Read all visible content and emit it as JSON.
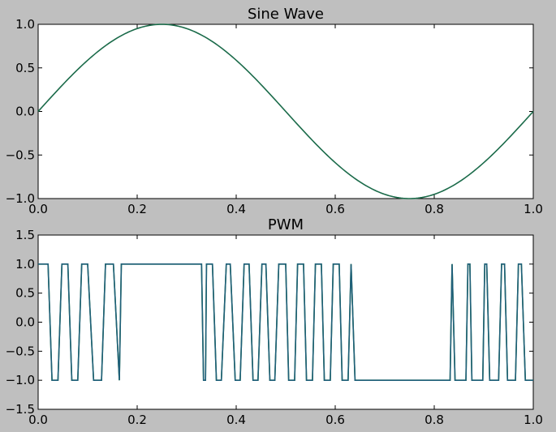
{
  "figure": {
    "background": "#bfbfbf"
  },
  "chart_data": [
    {
      "type": "line",
      "title": "Sine Wave",
      "xlabel": "",
      "ylabel": "",
      "xlim": [
        0.0,
        1.0
      ],
      "ylim": [
        -1.0,
        1.0
      ],
      "grid": false,
      "xticks": [
        0.0,
        0.2,
        0.4,
        0.6,
        0.8,
        1.0
      ],
      "xtick_labels": [
        "0.0",
        "0.2",
        "0.4",
        "0.6",
        "0.8",
        "1.0"
      ],
      "yticks": [
        1.0,
        0.5,
        0.0,
        -0.5,
        -1.0
      ],
      "ytick_labels": [
        "1.0",
        "0.5",
        "0.0",
        "−0.5",
        "−1.0"
      ],
      "series": [
        {
          "color": "#1b6b4a",
          "function": "sin(2*pi*x)",
          "x": [
            0.0,
            0.025,
            0.05,
            0.075,
            0.1,
            0.125,
            0.15,
            0.175,
            0.2,
            0.225,
            0.25,
            0.275,
            0.3,
            0.325,
            0.35,
            0.375,
            0.4,
            0.425,
            0.45,
            0.475,
            0.5,
            0.525,
            0.55,
            0.575,
            0.6,
            0.625,
            0.65,
            0.675,
            0.7,
            0.725,
            0.75,
            0.775,
            0.8,
            0.825,
            0.85,
            0.875,
            0.9,
            0.925,
            0.95,
            0.975,
            1.0
          ],
          "y": [
            0.0,
            0.156,
            0.309,
            0.454,
            0.588,
            0.707,
            0.809,
            0.891,
            0.951,
            0.988,
            1.0,
            0.988,
            0.951,
            0.891,
            0.809,
            0.707,
            0.588,
            0.454,
            0.309,
            0.156,
            0.0,
            -0.156,
            -0.309,
            -0.454,
            -0.588,
            -0.707,
            -0.809,
            -0.891,
            -0.951,
            -0.988,
            -1.0,
            -0.988,
            -0.951,
            -0.891,
            -0.809,
            -0.707,
            -0.588,
            -0.454,
            -0.309,
            -0.156,
            0.0
          ]
        }
      ]
    },
    {
      "type": "line",
      "title": "PWM",
      "xlabel": "",
      "ylabel": "",
      "xlim": [
        0.0,
        1.0
      ],
      "ylim": [
        -1.5,
        1.5
      ],
      "grid": false,
      "xticks": [
        0.0,
        0.2,
        0.4,
        0.6,
        0.8,
        1.0
      ],
      "xtick_labels": [
        "0.0",
        "0.2",
        "0.4",
        "0.6",
        "0.8",
        "1.0"
      ],
      "yticks": [
        1.5,
        1.0,
        0.5,
        0.0,
        -0.5,
        -1.0,
        -1.5
      ],
      "ytick_labels": [
        "1.5",
        "1.0",
        "0.5",
        "0.0",
        "−0.5",
        "−1.0",
        "−1.5"
      ],
      "series": [
        {
          "color": "#2e8b2e",
          "x": [
            0.0,
            0.02,
            0.028,
            0.04,
            0.048,
            0.06,
            0.068,
            0.08,
            0.088,
            0.1,
            0.112,
            0.128,
            0.136,
            0.152,
            0.164,
            0.168,
            0.33,
            0.334,
            0.338,
            0.34,
            0.352,
            0.36,
            0.37,
            0.38,
            0.388,
            0.398,
            0.408,
            0.416,
            0.426,
            0.434,
            0.444,
            0.452,
            0.46,
            0.468,
            0.478,
            0.486,
            0.5,
            0.506,
            0.518,
            0.524,
            0.536,
            0.542,
            0.554,
            0.56,
            0.572,
            0.578,
            0.59,
            0.596,
            0.608,
            0.614,
            0.626,
            0.632,
            0.64,
            0.832,
            0.836,
            0.842,
            0.864,
            0.868,
            0.872,
            0.876,
            0.898,
            0.902,
            0.906,
            0.912,
            0.93,
            0.936,
            0.942,
            0.948,
            0.964,
            0.97,
            0.976,
            0.984,
            1.0
          ],
          "y": [
            1.0,
            1.0,
            -1.0,
            -1.0,
            1.0,
            1.0,
            -1.0,
            -1.0,
            1.0,
            1.0,
            -1.0,
            -1.0,
            1.0,
            1.0,
            -1.0,
            1.0,
            1.0,
            -1.0,
            -1.0,
            1.0,
            1.0,
            -1.0,
            -1.0,
            1.0,
            1.0,
            -1.0,
            -1.0,
            1.0,
            1.0,
            -1.0,
            -1.0,
            1.0,
            1.0,
            -1.0,
            -1.0,
            1.0,
            1.0,
            -1.0,
            -1.0,
            1.0,
            1.0,
            -1.0,
            -1.0,
            1.0,
            1.0,
            -1.0,
            -1.0,
            1.0,
            1.0,
            -1.0,
            -1.0,
            1.0,
            -1.0,
            -1.0,
            1.0,
            -1.0,
            -1.0,
            1.0,
            1.0,
            -1.0,
            -1.0,
            1.0,
            1.0,
            -1.0,
            -1.0,
            1.0,
            1.0,
            -1.0,
            -1.0,
            1.0,
            1.0,
            -1.0,
            -1.0
          ]
        },
        {
          "color": "#1f5f7a",
          "x": [
            0.0,
            0.02,
            0.028,
            0.04,
            0.048,
            0.06,
            0.068,
            0.08,
            0.088,
            0.1,
            0.112,
            0.128,
            0.136,
            0.152,
            0.164,
            0.168,
            0.33,
            0.334,
            0.338,
            0.34,
            0.352,
            0.36,
            0.37,
            0.38,
            0.388,
            0.398,
            0.408,
            0.416,
            0.426,
            0.434,
            0.444,
            0.452,
            0.46,
            0.468,
            0.478,
            0.486,
            0.5,
            0.506,
            0.518,
            0.524,
            0.536,
            0.542,
            0.554,
            0.56,
            0.572,
            0.578,
            0.59,
            0.596,
            0.608,
            0.614,
            0.626,
            0.632,
            0.64,
            0.832,
            0.836,
            0.842,
            0.864,
            0.868,
            0.872,
            0.876,
            0.898,
            0.902,
            0.906,
            0.912,
            0.93,
            0.936,
            0.942,
            0.948,
            0.964,
            0.97,
            0.976,
            0.984,
            1.0
          ],
          "y": [
            1.0,
            1.0,
            -1.0,
            -1.0,
            1.0,
            1.0,
            -1.0,
            -1.0,
            1.0,
            1.0,
            -1.0,
            -1.0,
            1.0,
            1.0,
            -1.0,
            1.0,
            1.0,
            -1.0,
            -1.0,
            1.0,
            1.0,
            -1.0,
            -1.0,
            1.0,
            1.0,
            -1.0,
            -1.0,
            1.0,
            1.0,
            -1.0,
            -1.0,
            1.0,
            1.0,
            -1.0,
            -1.0,
            1.0,
            1.0,
            -1.0,
            -1.0,
            1.0,
            1.0,
            -1.0,
            -1.0,
            1.0,
            1.0,
            -1.0,
            -1.0,
            1.0,
            1.0,
            -1.0,
            -1.0,
            1.0,
            -1.0,
            -1.0,
            1.0,
            -1.0,
            -1.0,
            1.0,
            1.0,
            -1.0,
            -1.0,
            1.0,
            1.0,
            -1.0,
            -1.0,
            1.0,
            1.0,
            -1.0,
            -1.0,
            1.0,
            1.0,
            -1.0,
            -1.0
          ]
        }
      ]
    }
  ]
}
